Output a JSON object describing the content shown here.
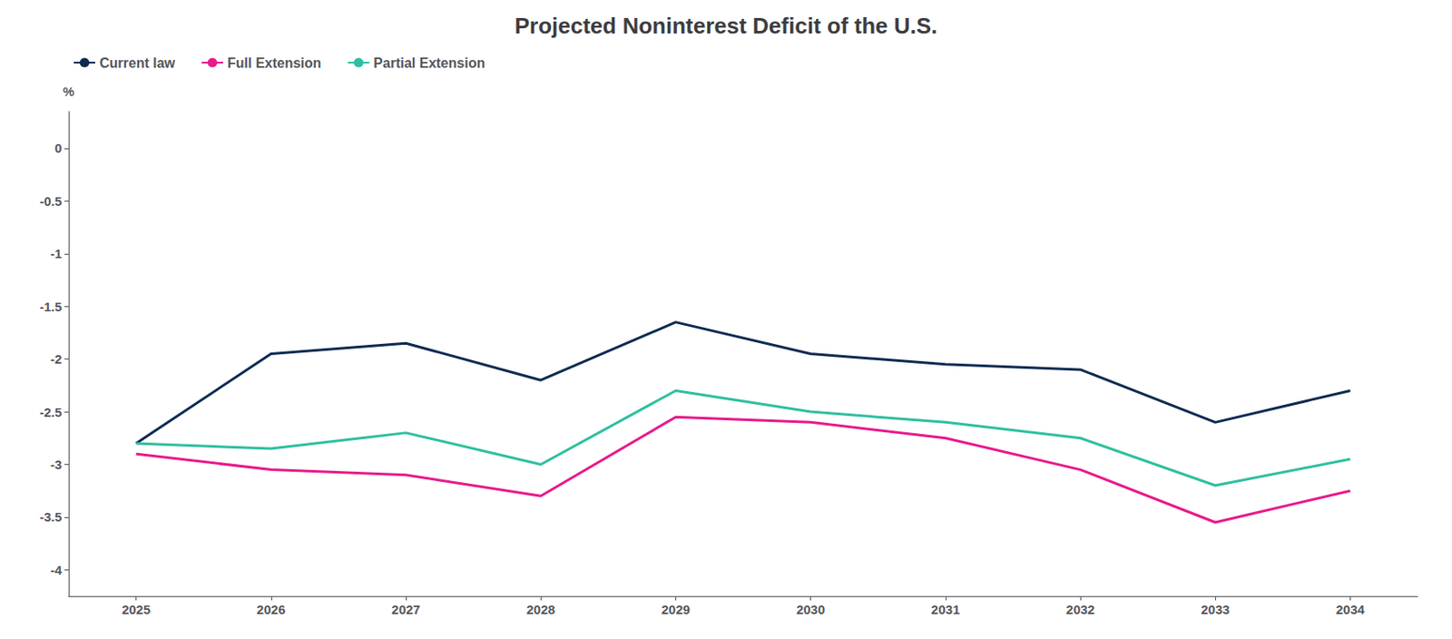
{
  "chart_data": {
    "type": "line",
    "title": "Projected Noninterest Deficit of the U.S.",
    "ylabel": "%",
    "x": [
      2025,
      2026,
      2027,
      2028,
      2029,
      2030,
      2031,
      2032,
      2033,
      2034
    ],
    "xlim": [
      2024.5,
      2034.5
    ],
    "xticks": [
      2025,
      2026,
      2027,
      2028,
      2029,
      2030,
      2031,
      2032,
      2033,
      2034
    ],
    "ylim": [
      -4.25,
      0.35
    ],
    "yticks": [
      0,
      -0.5,
      -1,
      -1.5,
      -2,
      -2.5,
      -3,
      -3.5,
      -4
    ],
    "series": [
      {
        "name": "Current law",
        "color": "#0d2b52",
        "values": [
          -2.8,
          -1.95,
          -1.85,
          -2.2,
          -1.65,
          -1.95,
          -2.05,
          -2.1,
          -2.6,
          -2.3
        ]
      },
      {
        "name": "Full Extension",
        "color": "#e8198b",
        "values": [
          -2.9,
          -3.05,
          -3.1,
          -3.3,
          -2.55,
          -2.6,
          -2.75,
          -3.05,
          -3.55,
          -3.25
        ]
      },
      {
        "name": "Partial Extension",
        "color": "#2ebfa0",
        "values": [
          -2.8,
          -2.85,
          -2.7,
          -3.0,
          -2.3,
          -2.5,
          -2.6,
          -2.75,
          -3.2,
          -2.95
        ]
      }
    ],
    "grid": false,
    "legend": "upper left"
  }
}
